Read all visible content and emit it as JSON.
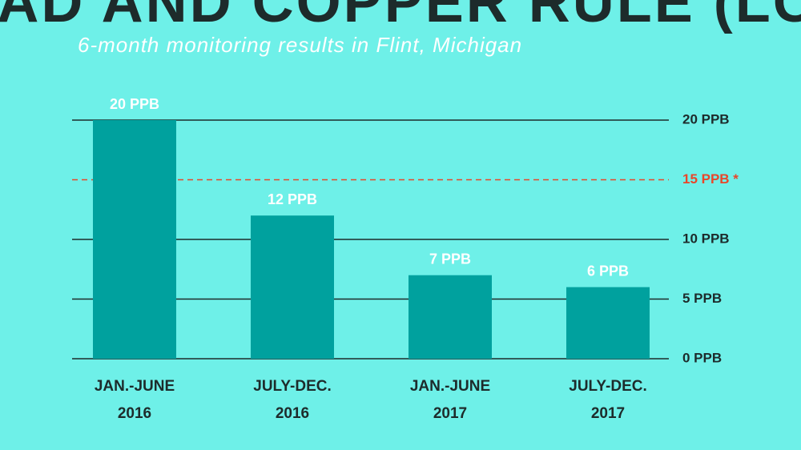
{
  "chart_data": {
    "type": "bar",
    "title": "LEAD AND COPPER RULE (LCR)",
    "subtitle": "6-month monitoring results in Flint, Michigan",
    "categories": [
      [
        "JAN.-JUNE",
        "2016"
      ],
      [
        "JULY-DEC.",
        "2016"
      ],
      [
        "JAN.-JUNE",
        "2017"
      ],
      [
        "JULY-DEC.",
        "2017"
      ]
    ],
    "values": [
      20,
      12,
      7,
      6
    ],
    "value_labels": [
      "20 PPB",
      "12 PPB",
      "7 PPB",
      "6 PPB"
    ],
    "color": "#00a19e",
    "ylim": [
      0,
      20
    ],
    "yticks": [
      {
        "value": 0,
        "label": "0 PPB"
      },
      {
        "value": 5,
        "label": "5 PPB"
      },
      {
        "value": 10,
        "label": "10 PPB"
      },
      {
        "value": 20,
        "label": "20 PPB"
      }
    ],
    "reference_lines": [
      {
        "value": 15,
        "label": "15 PPB *",
        "color": "#e8462a"
      }
    ],
    "grid": true
  }
}
